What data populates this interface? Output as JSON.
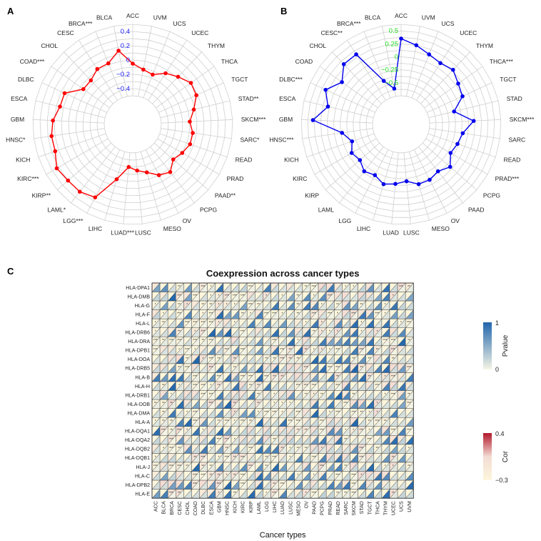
{
  "figure": {
    "background": "#ffffff"
  },
  "chart_data": [
    {
      "panel": "A",
      "type": "radar",
      "categories": [
        "ACC",
        "UVM",
        "UCS",
        "UCEC",
        "THYM",
        "THCA",
        "TGCT",
        "STAD**",
        "SKCM***",
        "SARC*",
        "READ",
        "PRAD",
        "PAAD**",
        "PCPG",
        "OV",
        "MESO",
        "LUSC",
        "LUAD***",
        "LIHC",
        "LGG***",
        "LAML*",
        "KIRP**",
        "KIRC***",
        "KICH",
        "HNSC*",
        "GBM",
        "ESCA",
        "DLBC",
        "COAD***",
        "CHOL",
        "CESC",
        "BRCA***",
        "BLCA"
      ],
      "values": [
        -0.05,
        -0.12,
        -0.15,
        -0.05,
        0.02,
        0.1,
        0.08,
        -0.02,
        -0.1,
        -0.05,
        -0.05,
        -0.1,
        -0.15,
        -0.05,
        -0.1,
        -0.2,
        -0.25,
        -0.3,
        -0.1,
        0.25,
        0.3,
        0.3,
        0.33,
        0.25,
        0.25,
        0.22,
        0.15,
        0.15,
        -0.05,
        -0.05,
        0.02,
        0.02,
        0.15
      ],
      "rings": [
        -0.5,
        -0.4,
        -0.3,
        -0.2,
        -0.1,
        0.0,
        0.1,
        0.2,
        0.3,
        0.4,
        0.5
      ],
      "tick_labels": [
        "0.4",
        "0.2",
        "0",
        "−0.2",
        "−0.4"
      ],
      "tick_values": [
        0.4,
        0.2,
        0,
        -0.2,
        -0.4
      ],
      "range": [
        -0.5,
        0.5
      ],
      "line_color": "#ff0000",
      "tick_color": "#1a1aff"
    },
    {
      "panel": "B",
      "type": "radar",
      "categories": [
        "ACC",
        "UVM",
        "UCS",
        "UCEC",
        "THYM",
        "THCA***",
        "TGCT",
        "STAD",
        "SKCM***",
        "SARC",
        "READ",
        "PRAD***",
        "PCPG",
        "PAAD",
        "OV",
        "MESO",
        "LUSC",
        "LUAD",
        "LIHC",
        "LGG",
        "LAML",
        "KIRP",
        "KIRC",
        "KICH",
        "HNSC***",
        "GBM",
        "ESCA",
        "DLBC***",
        "COAD",
        "CHOL",
        "CESC**",
        "BRCA***",
        "BLCA"
      ],
      "values": [
        0.35,
        0.25,
        0.15,
        0.1,
        0.15,
        0.05,
        0.0,
        -0.25,
        0.1,
        -0.1,
        -0.15,
        -0.2,
        -0.05,
        -0.15,
        -0.1,
        -0.1,
        -0.2,
        -0.15,
        -0.1,
        -0.2,
        -0.15,
        -0.25,
        -0.2,
        -0.3,
        -0.15,
        0.4,
        0.15,
        0.3,
        0.1,
        0.3,
        0.3,
        -0.4,
        -0.6
      ],
      "rings": [
        -0.75,
        -0.625,
        -0.5,
        -0.375,
        -0.25,
        -0.125,
        0.0,
        0.125,
        0.25,
        0.375,
        0.5,
        0.625
      ],
      "tick_labels": [
        "0.5",
        "0.25",
        "0",
        "−0.25",
        "−0.5"
      ],
      "tick_values": [
        0.5,
        0.25,
        0,
        -0.25,
        -0.5
      ],
      "range": [
        -0.75,
        0.625
      ],
      "line_color": "#0000ee",
      "tick_color": "#22dd22"
    },
    {
      "panel": "C",
      "type": "heatmap",
      "title": "Coexpression across cancer types",
      "xlabel": "Cancer types",
      "x": [
        "ACC",
        "BLCA",
        "BRCA",
        "CESC",
        "CHOL",
        "COAD",
        "DLBC",
        "ESCA",
        "GBM",
        "HNSC",
        "KICH",
        "KIRC",
        "KIRP",
        "LAML",
        "LGG",
        "LIHC",
        "LUAD",
        "LUSC",
        "MESO",
        "OV",
        "PAAD",
        "PCPG",
        "PRAD",
        "READ",
        "SARC",
        "SKCM",
        "STAD",
        "TGCT",
        "THCA",
        "THYM",
        "UCEC",
        "UCS",
        "UVM"
      ],
      "y": [
        "HLA-DPA1",
        "HLA-DMB",
        "HLA-G",
        "HLA-F",
        "HLA-L",
        "HLA-DRB6",
        "HLA-DRA",
        "HLA-DPB1",
        "HLA-DOA",
        "HLA-DRB5",
        "HLA-B",
        "HLA-H",
        "HLA-DRB1",
        "HLA-DOB",
        "HLA-DMA",
        "HLA-A",
        "HLA-DQA1",
        "HLA-DQA2",
        "HLA-DQB2",
        "HLA-DQB1",
        "HLA-J",
        "HLA-C",
        "HLA-DPB2",
        "HLA-E"
      ],
      "legend_pvalue": {
        "title": "Pvalue",
        "max_label": "1",
        "min_label": "0",
        "colors": [
          "#f5f5e6",
          "#2166ac"
        ]
      },
      "legend_cor": {
        "title": "Cor",
        "max_label": "0.4",
        "min_label": "−0.3",
        "colors": [
          "#fdf6dc",
          "#f3dcd4",
          "#b2182b"
        ]
      },
      "star_marks": [
        "*",
        "**",
        "***"
      ]
    }
  ],
  "panel_labels": [
    "A",
    "B",
    "C"
  ]
}
